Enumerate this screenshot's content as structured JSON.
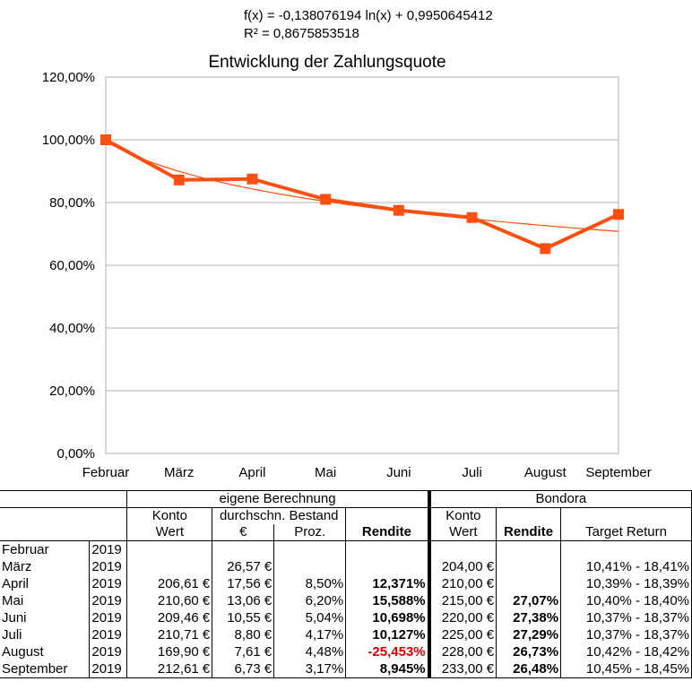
{
  "chart_data": {
    "type": "line",
    "title": "Entwicklung der Zahlungsquote",
    "trendline_equation": "f(x) = -0,138076194 ln(x) + 0,9950645412",
    "r_squared": "R² = 0,8675853518",
    "categories": [
      "Februar",
      "März",
      "April",
      "Mai",
      "Juni",
      "Juli",
      "August",
      "September"
    ],
    "series": [
      {
        "values": [
          100.0,
          87.2,
          87.5,
          81.0,
          77.5,
          75.2,
          65.3,
          76.2
        ],
        "color": "#ff4f0f"
      }
    ],
    "trendline": {
      "type": "logarithmic",
      "a": -0.138076194,
      "b": 0.9950645412,
      "color": "#ff4f0f"
    },
    "ylim": [
      0,
      120
    ],
    "yticks": [
      "0,00%",
      "20,00%",
      "40,00%",
      "60,00%",
      "80,00%",
      "100,00%",
      "120,00%"
    ],
    "ytick_values": [
      0,
      20,
      40,
      60,
      80,
      100,
      120
    ],
    "grid": true,
    "xlabel": "",
    "ylabel": ""
  },
  "table": {
    "group1": "eigene Berechnung",
    "group2": "Bondora",
    "col_konto": [
      "Konto",
      "Wert"
    ],
    "col_bestand_top": "durchschn. Bestand",
    "col_eur": "€",
    "col_proz": "Proz.",
    "col_rendite": "Rendite",
    "col_target": "Target Return",
    "rows": [
      {
        "month": "Februar",
        "year": "2019",
        "konto": "",
        "eur": "",
        "proz": "",
        "rendite": "",
        "bkonto": "",
        "brendite": "",
        "target": ""
      },
      {
        "month": "März",
        "year": "2019",
        "konto": "",
        "eur": "26,57 €",
        "proz": "",
        "rendite": "",
        "bkonto": "204,00 €",
        "brendite": "",
        "target": "10,41%  -  18,41%"
      },
      {
        "month": "April",
        "year": "2019",
        "konto": "206,61 €",
        "eur": "17,56 €",
        "proz": "8,50%",
        "rendite": "12,371%",
        "bkonto": "210,00 €",
        "brendite": "",
        "target": "10,39%  -  18,39%"
      },
      {
        "month": "Mai",
        "year": "2019",
        "konto": "210,60 €",
        "eur": "13,06 €",
        "proz": "6,20%",
        "rendite": "15,588%",
        "bkonto": "215,00 €",
        "brendite": "27,07%",
        "target": "10,40%  -  18,40%"
      },
      {
        "month": "Juni",
        "year": "2019",
        "konto": "209,46 €",
        "eur": "10,55 €",
        "proz": "5,04%",
        "rendite": "10,698%",
        "bkonto": "220,00 €",
        "brendite": "27,38%",
        "target": "10,37%  -  18,37%"
      },
      {
        "month": "Juli",
        "year": "2019",
        "konto": "210,71 €",
        "eur": "8,80 €",
        "proz": "4,17%",
        "rendite": "10,127%",
        "bkonto": "225,00 €",
        "brendite": "27,29%",
        "target": "10,37%  -  18,37%"
      },
      {
        "month": "August",
        "year": "2019",
        "konto": "169,90 €",
        "eur": "7,61 €",
        "proz": "4,48%",
        "rendite": "-25,453%",
        "bkonto": "228,00 €",
        "brendite": "26,73%",
        "target": "10,42%  -  18,42%"
      },
      {
        "month": "September",
        "year": "2019",
        "konto": "212,61 €",
        "eur": "6,73 €",
        "proz": "3,17%",
        "rendite": "8,945%",
        "bkonto": "233,00 €",
        "brendite": "26,48%",
        "target": "10,45%  -  18,45%"
      }
    ]
  }
}
